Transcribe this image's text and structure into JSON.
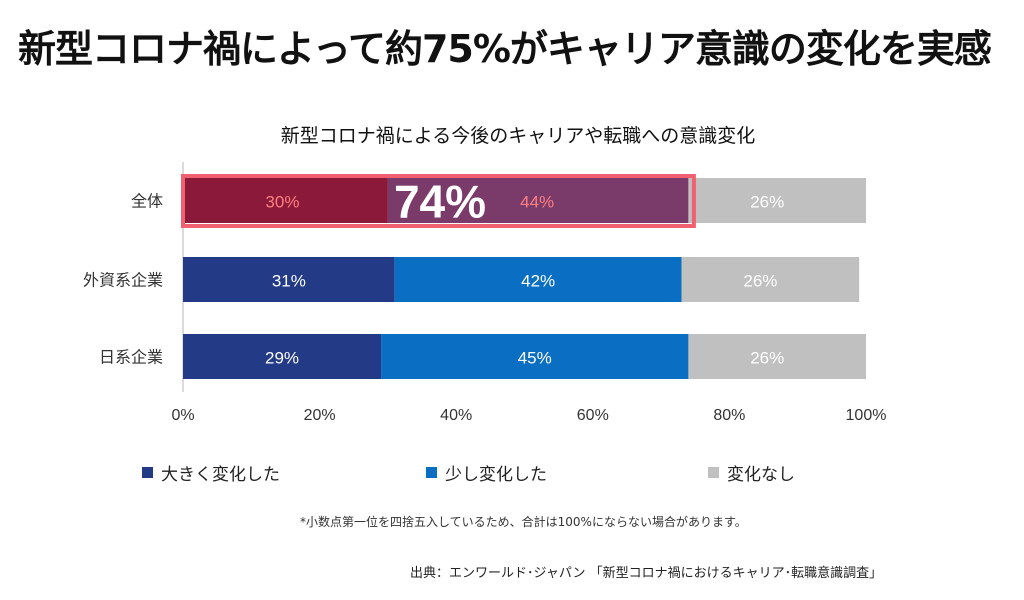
{
  "headline": "新型コロナ禍によって約75%がキャリア意識の変化を実感",
  "chart_data": {
    "type": "bar",
    "orientation": "horizontal",
    "stacked": true,
    "title": "新型コロナ禍による今後のキャリアや転職への意識変化",
    "categories": [
      "全体",
      "外資系企業",
      "日系企業"
    ],
    "series": [
      {
        "name": "大きく変化した",
        "values": [
          30,
          31,
          29
        ],
        "labels": [
          "30%",
          "31%",
          "29%"
        ],
        "color": "#233a86"
      },
      {
        "name": "少し変化した",
        "values": [
          44,
          42,
          45
        ],
        "labels": [
          "44%",
          "42%",
          "45%"
        ],
        "color": "#0a6fc2"
      },
      {
        "name": "変化なし",
        "values": [
          26,
          26,
          26
        ],
        "labels": [
          "26%",
          "26%",
          "26%"
        ],
        "color": "#c0c0c0"
      }
    ],
    "xlim": [
      0,
      100
    ],
    "xticks": [
      "0%",
      "20%",
      "40%",
      "60%",
      "80%",
      "100%"
    ],
    "highlight": {
      "category": "全体",
      "value": 74,
      "label": "74%",
      "color": "#8b1a3a",
      "border": "#f06070",
      "text_color": "#ff8080"
    },
    "legend_position": "bottom"
  },
  "footnote": "*小数点第一位を四捨五入しているため、合計は100%にならない場合があります。",
  "source": "出典：エンワールド･ジャパン 「新型コロナ禍におけるキャリア･転職意識調査」"
}
